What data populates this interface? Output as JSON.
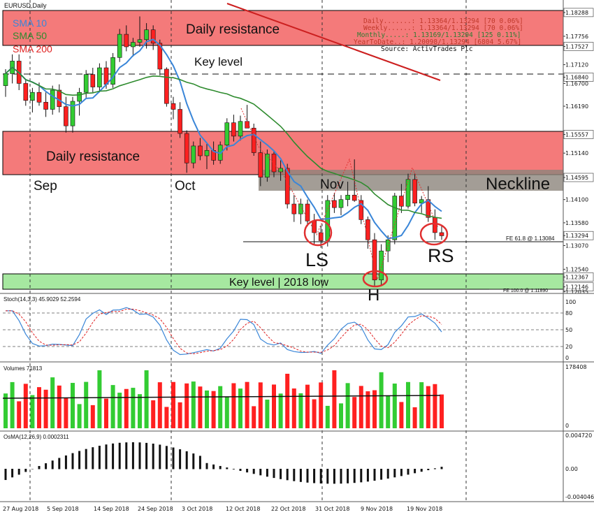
{
  "window_title": "EURUSD,Daily",
  "legend": [
    {
      "label": "SMA 10",
      "color": "#3a86d8"
    },
    {
      "label": "SMA 50",
      "color": "#2e8b2e"
    },
    {
      "label": "SMA 200",
      "color": "#e02020"
    }
  ],
  "stats_box": {
    "rows": [
      {
        "text": "Daily.......: 1.13364/1.13294 [70 0.06%]",
        "color": "#c0392b"
      },
      {
        "text": "Weekly......: 1.13364/1.13294 [70 0.06%]",
        "color": "#c0392b"
      },
      {
        "text": "Monthly.....: 1.13169/1.13294 [125 0.11%]",
        "color": "#2e7d32"
      },
      {
        "text": "YearToDate..: 1.20098/1.13294 [6804 5.67%]",
        "color": "#c0392b"
      }
    ],
    "source": "Source: ActivTrades Plc"
  },
  "annotations": {
    "daily_resistance_top": "Daily resistance",
    "daily_resistance_mid": "Daily resistance",
    "key_level": "Key level",
    "neckline": "Neckline",
    "key_level_2018_low": "Key level | 2018 low",
    "ls": "LS",
    "h": "H",
    "rs": "RS",
    "month_sep": "Sep",
    "month_oct": "Oct",
    "month_nov": "Nov",
    "fe618": "FE 61.8 @ 1.13084",
    "fe100": "FE 100.0 @ 1.11890"
  },
  "colors": {
    "resistance_fill": "#f47a7a",
    "neckline_fill": "#8c857c",
    "support_fill": "#a6e8a0",
    "bull": "#33cc33",
    "bear": "#ff2020",
    "sma10": "#3a86d8",
    "sma50": "#2e8b2e",
    "sma200": "#e02020",
    "stoch_main": "#3a86d8",
    "stoch_signal": "#e02020",
    "circle": "#e03030"
  },
  "chart_data": {
    "type": "candlestick",
    "symbol": "EURUSD",
    "timeframe": "Daily",
    "price_axis": {
      "ylim": [
        1.1203,
        1.1838
      ],
      "tick_labels": [
        "1.18288",
        "1.17756",
        "1.17527",
        "1.17120",
        "1.16840",
        "1.16700",
        "1.16190",
        "1.15557",
        "1.15140",
        "1.14595",
        "1.14100",
        "1.13580",
        "1.13294",
        "1.13070",
        "1.12540",
        "1.12367",
        "1.12146",
        "1.12035"
      ]
    },
    "date_labels": [
      "27 Aug 2018",
      "5 Sep 2018",
      "14 Sep 2018",
      "24 Sep 2018",
      "3 Oct 2018",
      "12 Oct 2018",
      "22 Oct 2018",
      "31 Oct 2018",
      "9 Nov 2018",
      "19 Nov 2018"
    ],
    "zones": [
      {
        "label": "Daily resistance",
        "from": 1.1753,
        "to": 1.1829
      },
      {
        "label": "Daily resistance",
        "from": 1.146,
        "to": 1.1556
      },
      {
        "label": "Neckline",
        "from": 1.1431,
        "to": 1.147
      },
      {
        "label": "Key level | 2018 low",
        "from": 1.1215,
        "to": 1.1237
      }
    ],
    "levels": [
      {
        "label": "Key level",
        "value": 1.1684,
        "style": "dashed"
      },
      {
        "label": "FE 61.8 @ 1.13084",
        "value": 1.13084
      },
      {
        "label": "FE 100.0 @ 1.11890",
        "value": 1.1189
      }
    ],
    "candles": [
      [
        1.1665,
        1.1702,
        1.164,
        1.1692
      ],
      [
        1.1692,
        1.1735,
        1.167,
        1.172
      ],
      [
        1.172,
        1.1735,
        1.1655,
        1.167
      ],
      [
        1.167,
        1.168,
        1.162,
        1.1632
      ],
      [
        1.1632,
        1.166,
        1.1605,
        1.165
      ],
      [
        1.165,
        1.1672,
        1.162,
        1.1628
      ],
      [
        1.1628,
        1.165,
        1.1595,
        1.1612
      ],
      [
        1.1612,
        1.1665,
        1.16,
        1.1655
      ],
      [
        1.1655,
        1.1668,
        1.1605,
        1.1618
      ],
      [
        1.1618,
        1.164,
        1.156,
        1.1575
      ],
      [
        1.1575,
        1.164,
        1.156,
        1.163
      ],
      [
        1.163,
        1.166,
        1.1598,
        1.165
      ],
      [
        1.165,
        1.17,
        1.1638,
        1.169
      ],
      [
        1.169,
        1.1705,
        1.165,
        1.1662
      ],
      [
        1.1662,
        1.1715,
        1.165,
        1.1705
      ],
      [
        1.1705,
        1.172,
        1.1658,
        1.1668
      ],
      [
        1.1668,
        1.1738,
        1.166,
        1.1728
      ],
      [
        1.1728,
        1.1792,
        1.1718,
        1.178
      ],
      [
        1.178,
        1.18,
        1.1742,
        1.1752
      ],
      [
        1.1752,
        1.1772,
        1.173,
        1.1762
      ],
      [
        1.1762,
        1.182,
        1.1752,
        1.1768
      ],
      [
        1.1768,
        1.1805,
        1.1748,
        1.179
      ],
      [
        1.179,
        1.18,
        1.1745,
        1.176
      ],
      [
        1.176,
        1.1768,
        1.1688,
        1.1702
      ],
      [
        1.1702,
        1.1706,
        1.1618,
        1.1625
      ],
      [
        1.1625,
        1.164,
        1.159,
        1.1612
      ],
      [
        1.1612,
        1.1628,
        1.1548,
        1.1558
      ],
      [
        1.1558,
        1.1565,
        1.147,
        1.1492
      ],
      [
        1.1492,
        1.154,
        1.148,
        1.153
      ],
      [
        1.153,
        1.1548,
        1.1498,
        1.1508
      ],
      [
        1.1508,
        1.1535,
        1.1478,
        1.152
      ],
      [
        1.152,
        1.154,
        1.1488,
        1.1498
      ],
      [
        1.1498,
        1.154,
        1.149,
        1.1532
      ],
      [
        1.1532,
        1.1592,
        1.152,
        1.1582
      ],
      [
        1.1582,
        1.16,
        1.154,
        1.1552
      ],
      [
        1.1552,
        1.1598,
        1.1542,
        1.1585
      ],
      [
        1.1585,
        1.1622,
        1.1572,
        1.157
      ],
      [
        1.157,
        1.158,
        1.1508,
        1.1515
      ],
      [
        1.1515,
        1.154,
        1.144,
        1.146
      ],
      [
        1.146,
        1.1522,
        1.145,
        1.1512
      ],
      [
        1.1512,
        1.1518,
        1.146,
        1.1472
      ],
      [
        1.1472,
        1.1498,
        1.1452,
        1.148
      ],
      [
        1.148,
        1.149,
        1.139,
        1.14
      ],
      [
        1.14,
        1.142,
        1.136,
        1.1378
      ],
      [
        1.1378,
        1.1412,
        1.1355,
        1.14
      ],
      [
        1.14,
        1.141,
        1.135,
        1.1362
      ],
      [
        1.1362,
        1.1378,
        1.131,
        1.1336
      ],
      [
        1.1336,
        1.1352,
        1.1302,
        1.1318
      ],
      [
        1.1318,
        1.142,
        1.1305,
        1.1408
      ],
      [
        1.1408,
        1.1425,
        1.138,
        1.1392
      ],
      [
        1.1392,
        1.142,
        1.1375,
        1.141
      ],
      [
        1.141,
        1.145,
        1.1395,
        1.142
      ],
      [
        1.142,
        1.15,
        1.1405,
        1.1408
      ],
      [
        1.1408,
        1.142,
        1.1355,
        1.1365
      ],
      [
        1.1365,
        1.1372,
        1.13,
        1.132
      ],
      [
        1.132,
        1.1335,
        1.1215,
        1.123
      ],
      [
        1.123,
        1.131,
        1.1218,
        1.1295
      ],
      [
        1.1295,
        1.133,
        1.127,
        1.132
      ],
      [
        1.132,
        1.1425,
        1.131,
        1.1418
      ],
      [
        1.1418,
        1.1445,
        1.138,
        1.1395
      ],
      [
        1.1395,
        1.1468,
        1.139,
        1.1455
      ],
      [
        1.1455,
        1.1468,
        1.1395,
        1.1402
      ],
      [
        1.1402,
        1.1418,
        1.138,
        1.141
      ],
      [
        1.141,
        1.144,
        1.136,
        1.137
      ],
      [
        1.137,
        1.1388,
        1.132,
        1.1336
      ],
      [
        1.1336,
        1.135,
        1.132,
        1.1329
      ]
    ],
    "sma10_label": "SMA 10",
    "sma50_label": "SMA 50",
    "sma200_label": "SMA 200",
    "stochastic": {
      "label": "Stoch(14,3,3) 45.9029 52.2594",
      "levels": [
        80,
        50,
        20
      ],
      "tick_labels": [
        "100",
        "80",
        "50",
        "20",
        "0"
      ]
    },
    "volumes": {
      "label": "Volumes 71813",
      "tick_labels": [
        "178408",
        "0"
      ]
    },
    "osma": {
      "label": "OsMA(12,26,9) 0.0002311",
      "tick_labels": [
        "0.004720",
        "0.00",
        "-0.004046"
      ]
    }
  }
}
